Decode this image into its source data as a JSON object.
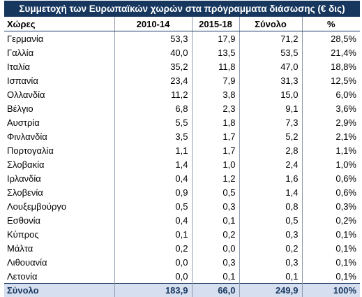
{
  "title": "Συμμετοχή των Ευρωπαϊκών χωρών στα πρόγραμματα διάσωσης (€ δις)",
  "headers": [
    "Χώρες",
    "2010-14",
    "2015-18",
    "Σύνολο",
    "%"
  ],
  "rows": [
    {
      "country": "Γερμανία",
      "a": "53,3",
      "b": "17,9",
      "total": "71,2",
      "pct": "28,5%"
    },
    {
      "country": "Γαλλία",
      "a": "40,0",
      "b": "13,5",
      "total": "53,5",
      "pct": "21,4%"
    },
    {
      "country": "Ιταλία",
      "a": "35,2",
      "b": "11,8",
      "total": "47,0",
      "pct": "18,8%"
    },
    {
      "country": "Ισπανία",
      "a": "23,4",
      "b": "7,9",
      "total": "31,3",
      "pct": "12,5%"
    },
    {
      "country": "Ολλανδία",
      "a": "11,2",
      "b": "3,8",
      "total": "15,0",
      "pct": "6,0%"
    },
    {
      "country": "Βέλγιο",
      "a": "6,8",
      "b": "2,3",
      "total": "9,1",
      "pct": "3,6%"
    },
    {
      "country": "Αυστρία",
      "a": "5,5",
      "b": "1,8",
      "total": "7,3",
      "pct": "2,9%"
    },
    {
      "country": "Φινλανδία",
      "a": "3,5",
      "b": "1,7",
      "total": "5,2",
      "pct": "2,1%"
    },
    {
      "country": "Πορτογαλία",
      "a": "1,1",
      "b": "1,7",
      "total": "2,8",
      "pct": "1,1%"
    },
    {
      "country": "Σλοβακία",
      "a": "1,4",
      "b": "1,0",
      "total": "2,4",
      "pct": "1,0%"
    },
    {
      "country": "Ιρλανδία",
      "a": "0,4",
      "b": "1,2",
      "total": "1,6",
      "pct": "0,6%"
    },
    {
      "country": "Σλοβενία",
      "a": "0,9",
      "b": "0,5",
      "total": "1,4",
      "pct": "0,6%"
    },
    {
      "country": "Λουξεμβούργο",
      "a": "0,5",
      "b": "0,3",
      "total": "0,8",
      "pct": "0,3%"
    },
    {
      "country": "Εσθονία",
      "a": "0,4",
      "b": "0,1",
      "total": "0,5",
      "pct": "0,2%"
    },
    {
      "country": "Κύπρος",
      "a": "0,1",
      "b": "0,2",
      "total": "0,3",
      "pct": "0,1%"
    },
    {
      "country": "Μάλτα",
      "a": "0,2",
      "b": "0,0",
      "total": "0,2",
      "pct": "0,1%"
    },
    {
      "country": "Λιθουανία",
      "a": "0,0",
      "b": "0,3",
      "total": "0,3",
      "pct": "0,1%"
    },
    {
      "country": "Λετονία",
      "a": "0,0",
      "b": "0,1",
      "total": "0,1",
      "pct": "0,1%"
    }
  ],
  "total": {
    "label": "Σύνολο",
    "a": "183,9",
    "b": "66,0",
    "total": "249,9",
    "pct": "100%"
  },
  "colors": {
    "header_bg": "#17375e",
    "total_bg": "#d6dfef",
    "total_text": "#17375e"
  }
}
